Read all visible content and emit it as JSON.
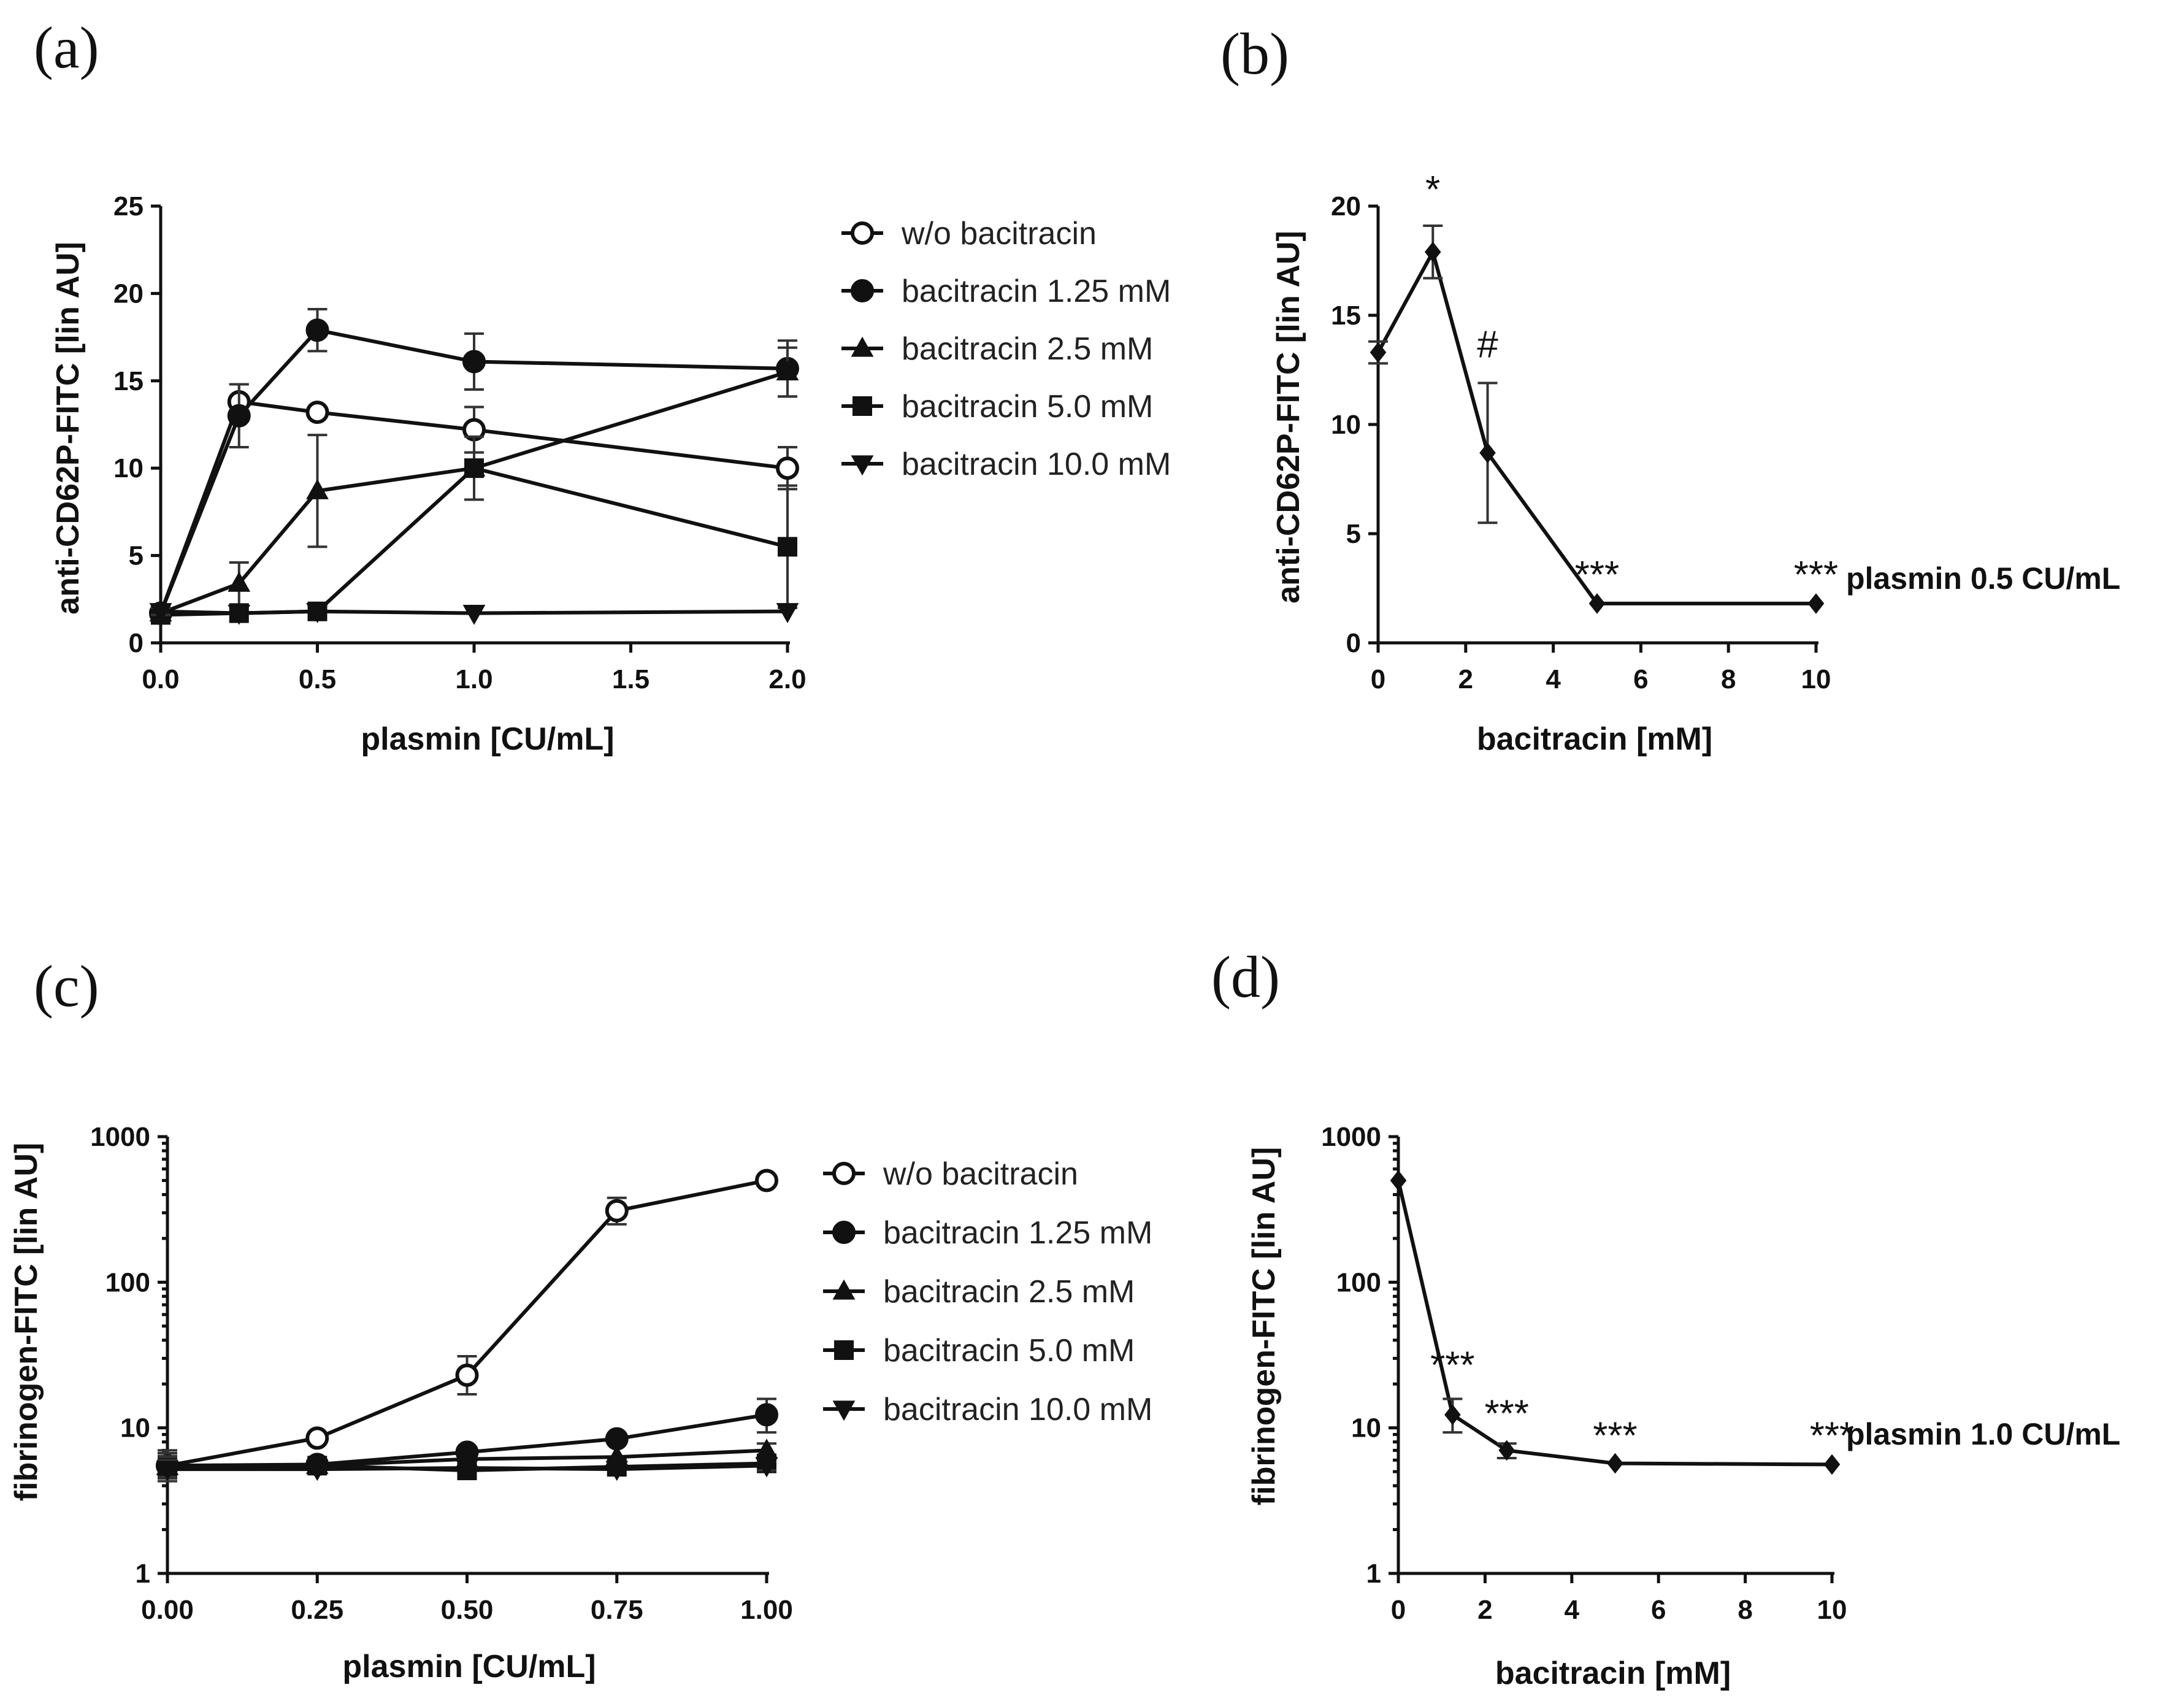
{
  "colors": {
    "ink": "#111111",
    "marker_open_fill": "#ffffff"
  },
  "chart_data": [
    {
      "id": "a",
      "panel_label": "(a)",
      "type": "line",
      "xlabel": "plasmin [CU/mL]",
      "ylabel": "anti-CD62P-FITC [lin AU]",
      "xlim": [
        0,
        2
      ],
      "ylim": [
        0,
        25
      ],
      "yscale": "linear",
      "xticks": [
        "0.0",
        "0.5",
        "1.0",
        "1.5",
        "2.0"
      ],
      "xtick_values": [
        0,
        0.5,
        1.0,
        1.5,
        2.0
      ],
      "yticks": [
        "0",
        "5",
        "10",
        "15",
        "20",
        "25"
      ],
      "ytick_values": [
        0,
        5,
        10,
        15,
        20,
        25
      ],
      "legend_position": "right",
      "x": [
        0,
        0.25,
        0.5,
        1.0,
        2.0
      ],
      "series": [
        {
          "name": "w/o bacitracin",
          "marker": "circle-open",
          "values": [
            1.7,
            13.8,
            13.2,
            12.2,
            10.0
          ],
          "errors": [
            0.3,
            1.0,
            0.0,
            1.3,
            1.2
          ]
        },
        {
          "name": "bacitracin 1.25 mM",
          "marker": "circle",
          "values": [
            1.7,
            13.0,
            17.9,
            16.1,
            15.7
          ],
          "errors": [
            0.3,
            1.8,
            1.2,
            1.6,
            1.6
          ]
        },
        {
          "name": "bacitracin 2.5 mM",
          "marker": "triangle-up",
          "values": [
            1.7,
            3.4,
            8.7,
            10.0,
            15.5
          ],
          "errors": [
            0.3,
            1.2,
            3.2,
            0.0,
            1.4
          ]
        },
        {
          "name": "bacitracin 5.0 mM",
          "marker": "square",
          "values": [
            1.6,
            1.7,
            1.8,
            10.0,
            5.5
          ],
          "errors": [
            0.3,
            0.0,
            0.0,
            1.8,
            3.5
          ]
        },
        {
          "name": "bacitracin 10.0 mM",
          "marker": "triangle-down",
          "values": [
            1.8,
            1.7,
            1.8,
            1.7,
            1.8
          ],
          "errors": [
            0.2,
            0.0,
            0.0,
            0.0,
            0.0
          ]
        }
      ]
    },
    {
      "id": "b",
      "panel_label": "(b)",
      "type": "line",
      "xlabel": "bacitracin [mM]",
      "ylabel": "anti-CD62P-FITC [lin AU]",
      "xlim": [
        0,
        10
      ],
      "ylim": [
        0,
        20
      ],
      "yscale": "linear",
      "xticks": [
        "0",
        "2",
        "4",
        "6",
        "8",
        "10"
      ],
      "xtick_values": [
        0,
        2,
        4,
        6,
        8,
        10
      ],
      "yticks": [
        "0",
        "5",
        "10",
        "15",
        "20"
      ],
      "ytick_values": [
        0,
        5,
        10,
        15,
        20
      ],
      "condition_label": "plasmin 0.5 CU/mL",
      "x": [
        0,
        1.25,
        2.5,
        5.0,
        10.0
      ],
      "series": [
        {
          "marker": "diamond",
          "values": [
            13.3,
            17.9,
            8.7,
            1.8,
            1.8
          ],
          "errors": [
            0.5,
            1.2,
            3.2,
            0.0,
            0.0
          ]
        }
      ],
      "annotations": [
        {
          "text": "*",
          "x": 1.25
        },
        {
          "text": "#",
          "x": 2.5
        },
        {
          "text": "***",
          "x": 5.0
        },
        {
          "text": "***",
          "x": 10.0
        }
      ]
    },
    {
      "id": "c",
      "panel_label": "(c)",
      "type": "line",
      "xlabel": "plasmin [CU/mL]",
      "ylabel": "fibrinogen-FITC [lin AU]",
      "xlim": [
        0,
        1.0
      ],
      "ylim": [
        1,
        1000
      ],
      "yscale": "log",
      "xticks": [
        "0.00",
        "0.25",
        "0.50",
        "0.75",
        "1.00"
      ],
      "xtick_values": [
        0,
        0.25,
        0.5,
        0.75,
        1.0
      ],
      "yticks": [
        "1",
        "10",
        "100",
        "1000"
      ],
      "ytick_values": [
        1,
        10,
        100,
        1000
      ],
      "legend_position": "right",
      "x": [
        0,
        0.25,
        0.5,
        0.75,
        1.0
      ],
      "series": [
        {
          "name": "w/o bacitracin",
          "marker": "circle-open",
          "values": [
            5.5,
            8.5,
            23,
            310,
            500
          ],
          "errors_low": [
            1.2,
            0,
            6,
            60,
            0
          ],
          "errors_high": [
            1.5,
            0,
            8,
            70,
            0
          ]
        },
        {
          "name": "bacitracin 1.25 mM",
          "marker": "circle",
          "values": [
            5.5,
            5.6,
            6.8,
            8.4,
            12.3
          ],
          "errors_low": [
            1.0,
            0,
            0,
            0,
            3
          ],
          "errors_high": [
            1.2,
            0,
            0,
            0,
            3.5
          ]
        },
        {
          "name": "bacitracin 2.5 mM",
          "marker": "triangle-up",
          "values": [
            5.4,
            5.5,
            6.1,
            6.3,
            7.0
          ],
          "errors_low": [
            0.8,
            0,
            0,
            0,
            0.8
          ],
          "errors_high": [
            1.0,
            0,
            0,
            0,
            0.8
          ]
        },
        {
          "name": "bacitracin 5.0 mM",
          "marker": "square",
          "values": [
            5.3,
            5.5,
            5.1,
            5.4,
            5.7
          ],
          "errors_low": [
            0.8,
            0,
            0,
            0,
            0.4
          ],
          "errors_high": [
            1.0,
            0,
            0,
            0,
            0.5
          ]
        },
        {
          "name": "bacitracin 10.0 mM",
          "marker": "triangle-down",
          "values": [
            5.2,
            5.2,
            5.3,
            5.2,
            5.5
          ],
          "errors_low": [
            0.6,
            0,
            0,
            0,
            0.4
          ],
          "errors_high": [
            0.8,
            0,
            0,
            0,
            0.4
          ]
        }
      ]
    },
    {
      "id": "d",
      "panel_label": "(d)",
      "type": "line",
      "xlabel": "bacitracin [mM]",
      "ylabel": "fibrinogen-FITC [lin AU]",
      "xlim": [
        0,
        10
      ],
      "ylim": [
        1,
        1000
      ],
      "yscale": "log",
      "xticks": [
        "0",
        "2",
        "4",
        "6",
        "8",
        "10"
      ],
      "xtick_values": [
        0,
        2,
        4,
        6,
        8,
        10
      ],
      "yticks": [
        "1",
        "10",
        "100",
        "1000"
      ],
      "ytick_values": [
        1,
        10,
        100,
        1000
      ],
      "condition_label": "plasmin 1.0 CU/mL",
      "x": [
        0,
        1.25,
        2.5,
        5.0,
        10.0
      ],
      "series": [
        {
          "marker": "diamond",
          "values": [
            500,
            12.3,
            7.0,
            5.7,
            5.6
          ],
          "errors_low": [
            0,
            3,
            0.8,
            0,
            0
          ],
          "errors_high": [
            0,
            3.5,
            0.8,
            0,
            0
          ]
        }
      ],
      "annotations": [
        {
          "text": "***",
          "x": 1.25
        },
        {
          "text": "***",
          "x": 2.5
        },
        {
          "text": "***",
          "x": 5.0
        },
        {
          "text": "***",
          "x": 10.0
        }
      ]
    }
  ]
}
